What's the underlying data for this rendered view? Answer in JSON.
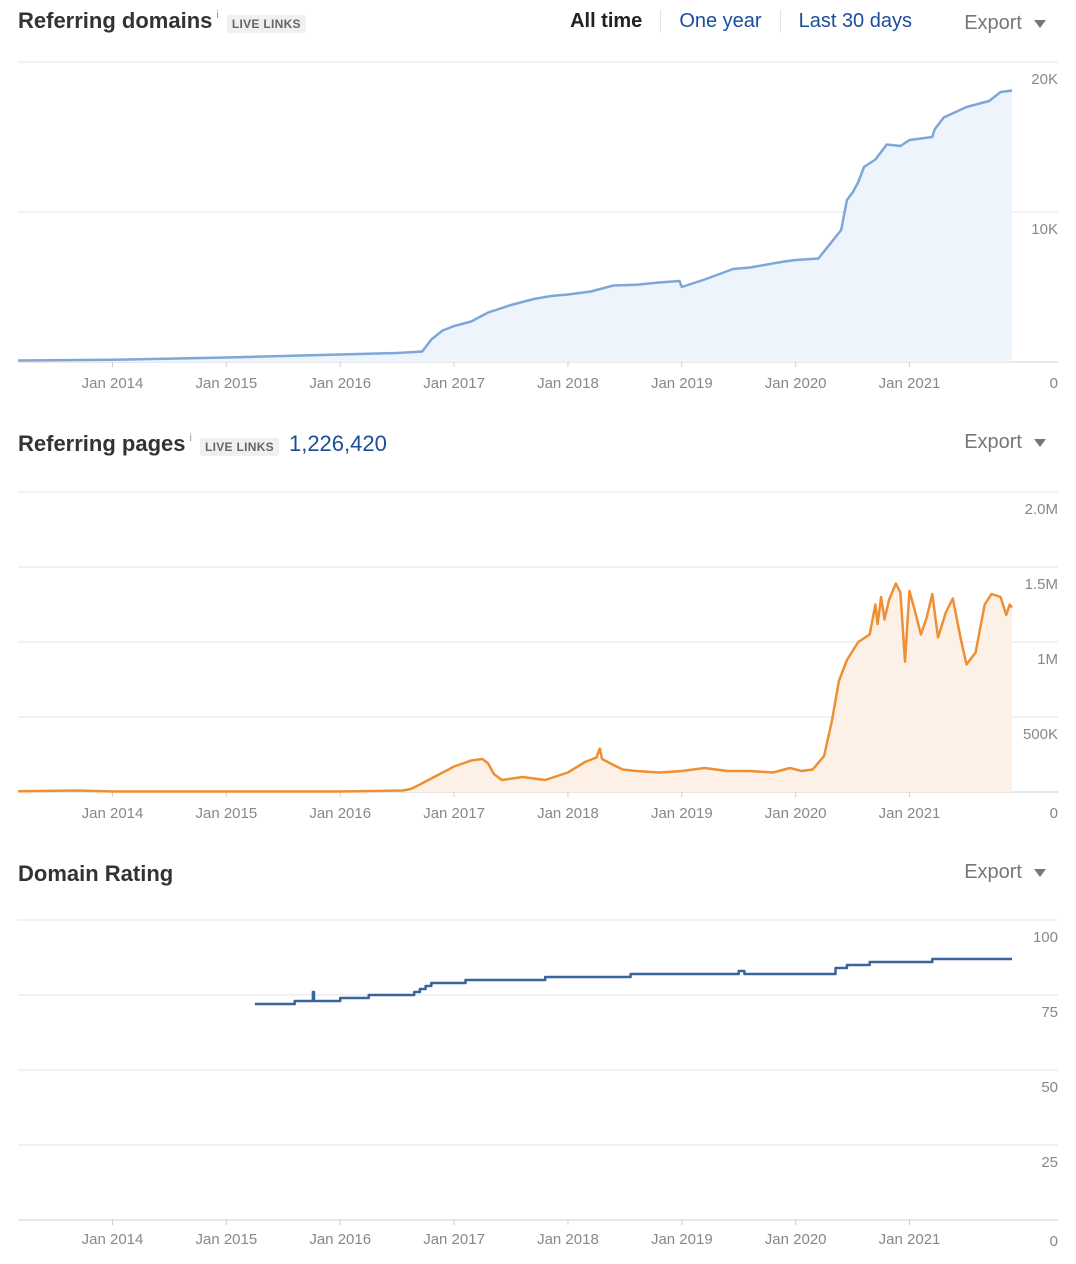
{
  "range_tabs": [
    "All time",
    "One year",
    "Last 30 days"
  ],
  "active_range": "All time",
  "export_label": "Export",
  "panels": [
    {
      "id": "referring-domains",
      "title": "Referring domains",
      "info_icon": "i",
      "badge": "LIVE LINKS",
      "count": ""
    },
    {
      "id": "referring-pages",
      "title": "Referring pages",
      "info_icon": "i",
      "badge": "LIVE LINKS",
      "count": "1,226,420"
    },
    {
      "id": "domain-rating",
      "title": "Domain Rating",
      "info_icon": "",
      "badge": "",
      "count": ""
    }
  ],
  "chart_data": [
    {
      "type": "area",
      "title": "Referring domains",
      "x_unit": "year",
      "xlim": [
        2013.17,
        2021.9
      ],
      "x_ticks": [
        2014,
        2015,
        2016,
        2017,
        2018,
        2019,
        2020,
        2021
      ],
      "x_tick_labels": [
        "Jan 2014",
        "Jan 2015",
        "Jan 2016",
        "Jan 2017",
        "Jan 2018",
        "Jan 2019",
        "Jan 2020",
        "Jan 2021"
      ],
      "ylim": [
        0,
        20000
      ],
      "y_ticks": [
        0,
        10000,
        20000
      ],
      "y_tick_labels": [
        "0",
        "10K",
        "20K"
      ],
      "grid": true,
      "color": "#7ea7d8",
      "fill": "#eef4fc",
      "x": [
        2013.17,
        2014.0,
        2015.0,
        2016.0,
        2016.5,
        2016.72,
        2016.8,
        2016.9,
        2017.0,
        2017.15,
        2017.3,
        2017.5,
        2017.7,
        2017.85,
        2018.0,
        2018.2,
        2018.4,
        2018.6,
        2018.8,
        2018.98,
        2019.0,
        2019.2,
        2019.45,
        2019.6,
        2019.9,
        2020.0,
        2020.2,
        2020.4,
        2020.45,
        2020.5,
        2020.55,
        2020.6,
        2020.7,
        2020.8,
        2020.92,
        2021.0,
        2021.2,
        2021.22,
        2021.3,
        2021.5,
        2021.7,
        2021.8,
        2021.9
      ],
      "values": [
        100,
        150,
        300,
        500,
        600,
        700,
        1500,
        2100,
        2400,
        2700,
        3300,
        3800,
        4200,
        4400,
        4500,
        4700,
        5100,
        5150,
        5300,
        5400,
        5000,
        5500,
        6200,
        6300,
        6700,
        6800,
        6900,
        8800,
        10800,
        11300,
        12000,
        13000,
        13500,
        14500,
        14400,
        14800,
        15000,
        15500,
        16300,
        17000,
        17400,
        18000,
        18100
      ]
    },
    {
      "type": "area",
      "title": "Referring pages",
      "x_unit": "year",
      "xlim": [
        2013.17,
        2021.9
      ],
      "x_ticks": [
        2014,
        2015,
        2016,
        2017,
        2018,
        2019,
        2020,
        2021
      ],
      "x_tick_labels": [
        "Jan 2014",
        "Jan 2015",
        "Jan 2016",
        "Jan 2017",
        "Jan 2018",
        "Jan 2019",
        "Jan 2020",
        "Jan 2021"
      ],
      "ylim": [
        0,
        2000000
      ],
      "y_ticks": [
        0,
        500000,
        1000000,
        1500000,
        2000000
      ],
      "y_tick_labels": [
        "0",
        "500K",
        "1M",
        "1.5M",
        "2.0M"
      ],
      "grid": true,
      "color": "#ef8f33",
      "fill": "#fdf1e7",
      "x": [
        2013.17,
        2013.7,
        2014.0,
        2015.0,
        2016.0,
        2016.55,
        2016.62,
        2016.7,
        2016.75,
        2016.9,
        2017.0,
        2017.15,
        2017.25,
        2017.3,
        2017.35,
        2017.42,
        2017.6,
        2017.8,
        2018.0,
        2018.15,
        2018.25,
        2018.28,
        2018.3,
        2018.4,
        2018.48,
        2018.6,
        2018.8,
        2019.0,
        2019.2,
        2019.4,
        2019.6,
        2019.8,
        2019.95,
        2020.05,
        2020.15,
        2020.25,
        2020.32,
        2020.38,
        2020.45,
        2020.55,
        2020.65,
        2020.7,
        2020.72,
        2020.75,
        2020.78,
        2020.82,
        2020.88,
        2020.92,
        2020.96,
        2021.0,
        2021.05,
        2021.1,
        2021.15,
        2021.2,
        2021.25,
        2021.32,
        2021.38,
        2021.45,
        2021.5,
        2021.58,
        2021.66,
        2021.72,
        2021.8,
        2021.85,
        2021.88,
        2021.9
      ],
      "values": [
        5000,
        10000,
        3000,
        3000,
        3000,
        10000,
        20000,
        50000,
        70000,
        130000,
        170000,
        210000,
        220000,
        190000,
        120000,
        80000,
        100000,
        80000,
        130000,
        200000,
        230000,
        290000,
        220000,
        180000,
        150000,
        140000,
        130000,
        140000,
        160000,
        140000,
        140000,
        130000,
        160000,
        140000,
        150000,
        240000,
        480000,
        740000,
        880000,
        1000000,
        1050000,
        1250000,
        1120000,
        1300000,
        1150000,
        1280000,
        1390000,
        1330000,
        870000,
        1340000,
        1200000,
        1050000,
        1160000,
        1320000,
        1030000,
        1200000,
        1290000,
        1020000,
        850000,
        930000,
        1250000,
        1320000,
        1300000,
        1180000,
        1250000,
        1230000
      ]
    },
    {
      "type": "line",
      "title": "Domain Rating",
      "x_unit": "year",
      "xlim": [
        2013.17,
        2021.9
      ],
      "x_ticks": [
        2014,
        2015,
        2016,
        2017,
        2018,
        2019,
        2020,
        2021
      ],
      "x_tick_labels": [
        "Jan 2014",
        "Jan 2015",
        "Jan 2016",
        "Jan 2017",
        "Jan 2018",
        "Jan 2019",
        "Jan 2020",
        "Jan 2021"
      ],
      "ylim": [
        0,
        100
      ],
      "y_ticks": [
        0,
        25,
        50,
        75,
        100
      ],
      "y_tick_labels": [
        "0",
        "25",
        "50",
        "75",
        "100"
      ],
      "grid": true,
      "color": "#3a659a",
      "x": [
        2015.25,
        2015.6,
        2015.75,
        2015.76,
        2015.77,
        2016.0,
        2016.25,
        2016.65,
        2016.7,
        2016.75,
        2016.8,
        2017.0,
        2017.1,
        2017.35,
        2017.8,
        2018.25,
        2018.55,
        2018.6,
        2019.0,
        2019.45,
        2019.5,
        2019.55,
        2020.25,
        2020.35,
        2020.45,
        2020.65,
        2021.2,
        2021.9
      ],
      "values": [
        72,
        73,
        73,
        76,
        73,
        74,
        75,
        76,
        77,
        78,
        79,
        79,
        80,
        80,
        81,
        81,
        82,
        82,
        82,
        82,
        83,
        82,
        82,
        84,
        85,
        86,
        87,
        87
      ],
      "step": true
    }
  ]
}
